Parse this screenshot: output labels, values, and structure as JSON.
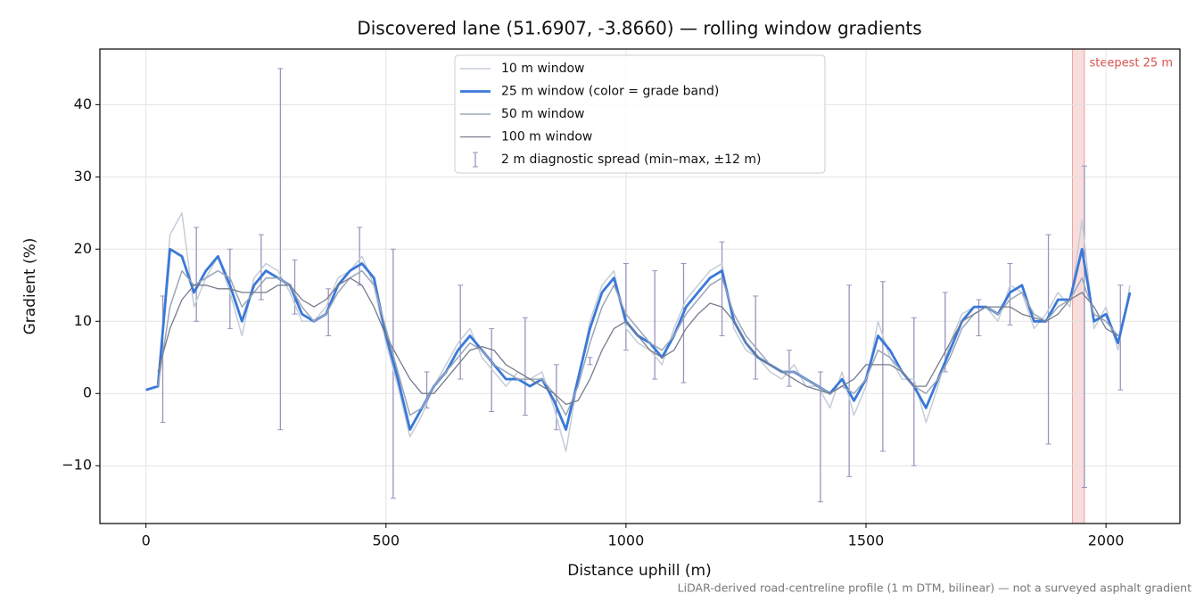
{
  "chart_data": {
    "type": "line",
    "title": "Discovered lane (51.6907, -3.8660) — rolling window gradients",
    "x_label": "Distance uphill (m)",
    "y_label": "Gradient (%)",
    "footnote": "LiDAR-derived road-centreline profile (1 m DTM, bilinear) — not a surveyed asphalt gradient",
    "xlim": [
      -96,
      2154
    ],
    "ylim": [
      -18,
      47.7
    ],
    "xticks": [
      0,
      500,
      1000,
      1500,
      2000
    ],
    "yticks": [
      {
        "value": -10,
        "label": "−10"
      },
      0,
      10,
      20,
      30,
      40
    ],
    "grid": true,
    "legend": "top-center",
    "x": [
      0,
      25,
      50,
      75,
      100,
      125,
      150,
      175,
      200,
      225,
      250,
      275,
      300,
      325,
      350,
      375,
      400,
      425,
      450,
      475,
      500,
      525,
      550,
      575,
      600,
      625,
      650,
      675,
      700,
      725,
      750,
      775,
      800,
      825,
      850,
      875,
      900,
      925,
      950,
      975,
      1000,
      1025,
      1050,
      1075,
      1100,
      1125,
      1150,
      1175,
      1200,
      1225,
      1250,
      1275,
      1300,
      1325,
      1350,
      1375,
      1400,
      1425,
      1450,
      1475,
      1500,
      1525,
      1550,
      1575,
      1600,
      1625,
      1650,
      1675,
      1700,
      1725,
      1750,
      1775,
      1800,
      1825,
      1850,
      1875,
      1900,
      1925,
      1950,
      1975,
      2000,
      2025,
      2050
    ],
    "series": [
      {
        "name": "10 m window",
        "color": "#c5cdd8",
        "values": [
          0.5,
          1,
          22,
          25,
          12,
          16,
          19,
          14,
          8,
          16,
          18,
          17,
          14,
          10,
          10,
          12,
          16,
          17,
          19,
          15,
          7,
          1,
          -6,
          -3,
          1,
          4,
          7,
          9,
          5,
          3,
          1,
          3,
          2,
          3,
          -2,
          -8,
          2,
          10,
          15,
          17,
          9,
          7,
          6,
          4,
          9,
          13,
          15,
          17,
          18,
          9,
          6,
          5,
          3,
          2,
          4,
          1,
          1,
          -2,
          3,
          -3,
          1,
          10,
          5,
          2,
          2,
          -4,
          1,
          7,
          11,
          12,
          12,
          10,
          15,
          14,
          9,
          11,
          14,
          12,
          24,
          9,
          12,
          6,
          15
        ]
      },
      {
        "name": "25 m window (color = grade band)",
        "color": "#3a78d8",
        "values": [
          0.5,
          1,
          20,
          19,
          14,
          17,
          19,
          15,
          10,
          15,
          17,
          16,
          15,
          11,
          10,
          11,
          15,
          17,
          18,
          16,
          8,
          2,
          -5,
          -2,
          1,
          3,
          6,
          8,
          6,
          4,
          2,
          2,
          1,
          2,
          -1,
          -5,
          2,
          9,
          14,
          16,
          10,
          8,
          7,
          5,
          8,
          12,
          14,
          16,
          17,
          10,
          7,
          5,
          4,
          3,
          3,
          2,
          1,
          0,
          2,
          -1,
          2,
          8,
          6,
          3,
          1,
          -2,
          2,
          6,
          10,
          12,
          12,
          11,
          14,
          15,
          10,
          10,
          13,
          13,
          20,
          10,
          11,
          7,
          14
        ]
      },
      {
        "name": "50 m window",
        "color": "#9aa6b8",
        "values": [
          null,
          1,
          12,
          17,
          15,
          16,
          17,
          16,
          12,
          14,
          16,
          16,
          15,
          12,
          10,
          11,
          14,
          16,
          17,
          15,
          9,
          3,
          -3,
          -2,
          1,
          3,
          5,
          7,
          6,
          4,
          3,
          2,
          2,
          2,
          0,
          -3,
          1,
          7,
          12,
          15,
          11,
          9,
          7,
          6,
          8,
          11,
          13,
          15,
          16,
          11,
          8,
          6,
          4,
          3,
          3,
          2,
          1,
          0,
          1,
          0,
          2,
          6,
          5,
          3,
          1,
          0,
          2,
          5,
          9,
          11,
          12,
          11,
          13,
          14,
          11,
          10,
          12,
          13,
          16,
          11,
          10,
          8,
          null
        ]
      },
      {
        "name": "100 m window",
        "color": "#767c8c",
        "values": [
          null,
          3,
          9,
          13,
          15,
          15,
          14.5,
          14.5,
          14,
          14,
          14,
          15,
          15,
          13,
          12,
          13,
          15,
          16,
          15,
          12,
          8,
          5,
          2,
          0,
          0,
          2,
          4,
          6,
          6.5,
          6,
          4,
          3,
          2,
          1,
          0,
          -1.5,
          -1,
          2,
          6,
          9,
          10,
          8,
          6,
          5,
          6,
          9,
          11,
          12.5,
          12,
          10,
          7,
          5,
          4,
          3,
          2,
          1,
          0.5,
          0,
          1,
          2,
          4,
          4,
          4,
          3,
          1,
          1,
          4,
          7,
          10,
          11,
          12,
          12,
          12,
          11,
          10.5,
          10,
          11,
          13,
          14,
          12,
          9,
          8,
          null
        ]
      }
    ],
    "error_bars": {
      "name": "2 m diagnostic spread (min–max, ±12 m)",
      "color": "#9a93bc",
      "x": [
        35,
        105,
        175,
        240,
        280,
        310,
        380,
        445,
        515,
        585,
        655,
        720,
        790,
        855,
        925,
        1000,
        1060,
        1120,
        1200,
        1270,
        1340,
        1405,
        1465,
        1535,
        1600,
        1665,
        1735,
        1800,
        1880,
        1955,
        2030
      ],
      "low": [
        -4,
        10,
        9,
        13,
        -5,
        11,
        8,
        15,
        -14.5,
        -2,
        2,
        -2.5,
        -3,
        -5,
        4,
        6,
        2,
        1.5,
        8,
        2,
        1,
        -15,
        -11.5,
        -8,
        -10,
        3,
        8,
        9.5,
        -7,
        -13,
        0.5
      ],
      "high": [
        13.5,
        23,
        20,
        22,
        45,
        18.5,
        14.5,
        23,
        20,
        3,
        15,
        9,
        10.5,
        4,
        5,
        18,
        17,
        18,
        21,
        13.5,
        6,
        3,
        15,
        15.5,
        10.5,
        14,
        13,
        18,
        22,
        31.5,
        15
      ]
    },
    "highlight": {
      "label": "steepest 25 m",
      "xrange": [
        1930,
        1955
      ],
      "color": "#d9534f"
    }
  }
}
